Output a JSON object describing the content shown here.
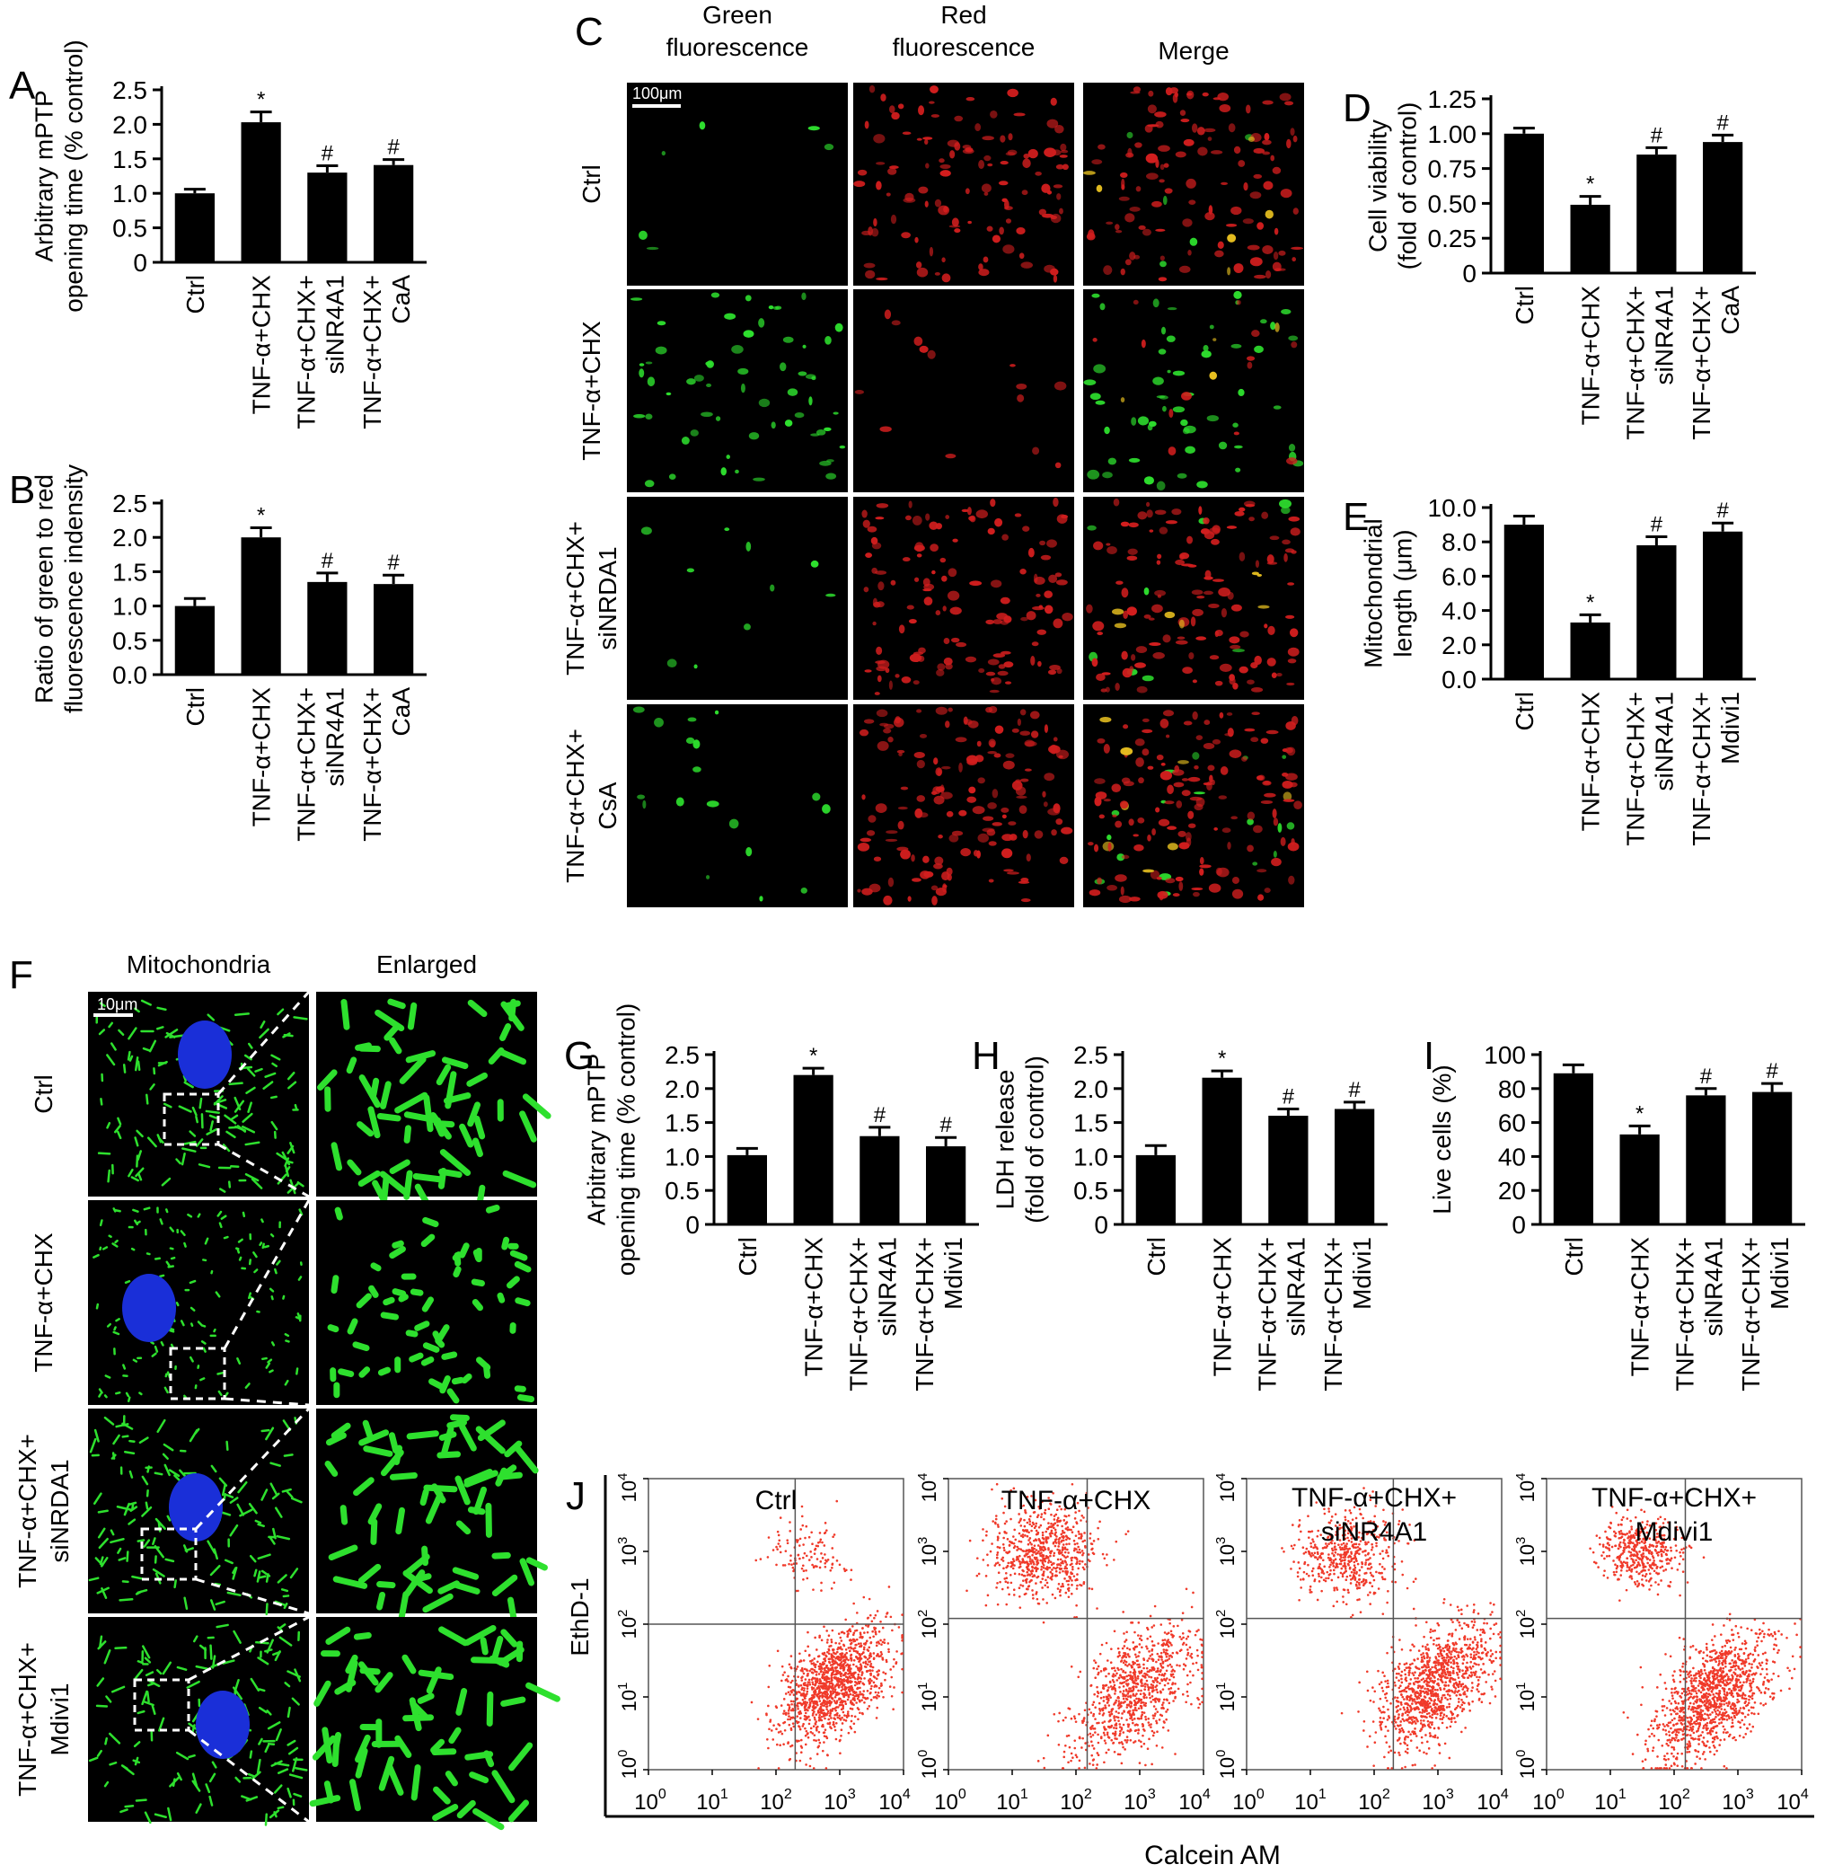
{
  "panel_letters": [
    "A",
    "B",
    "C",
    "D",
    "E",
    "F",
    "G",
    "H",
    "I",
    "J"
  ],
  "colors": {
    "bar": "#000000",
    "green": "#2ee02e",
    "red": "#d21e1e",
    "yellow": "#e8c020",
    "nucleus": "#1a2fd8",
    "flow_dot": "#f03a2a"
  },
  "chart_data": [
    {
      "id": "A",
      "type": "bar",
      "categories": [
        "Ctrl",
        "TNF-α+CHX",
        "TNF-α+CHX+\nsiNR4A1",
        "TNF-α+CHX+\nCaA"
      ],
      "values": [
        1.0,
        2.03,
        1.3,
        1.41
      ],
      "errors": [
        0.06,
        0.15,
        0.1,
        0.08
      ],
      "marks": [
        "",
        "*",
        "#",
        "#"
      ],
      "ylabel": "Arbitrary mPTP\nopening time (% control)",
      "ylim": [
        0,
        2.5
      ],
      "yticks": [
        "0",
        "0.5",
        "1.0",
        "1.5",
        "2.0",
        "2.5"
      ]
    },
    {
      "id": "B",
      "type": "bar",
      "categories": [
        "Ctrl",
        "TNF-α+CHX",
        "TNF-α+CHX+\nsiNR4A1",
        "TNF-α+CHX+\nCaA"
      ],
      "values": [
        1.0,
        2.0,
        1.35,
        1.32
      ],
      "errors": [
        0.11,
        0.14,
        0.13,
        0.13
      ],
      "marks": [
        "",
        "*",
        "#",
        "#"
      ],
      "ylabel": "Ratio of green to red\nfluorescence indensity",
      "ylim": [
        0,
        2.5
      ],
      "yticks": [
        "0.0",
        "0.5",
        "1.0",
        "1.5",
        "2.0",
        "2.5"
      ]
    },
    {
      "id": "D",
      "type": "bar",
      "categories": [
        "Ctrl",
        "TNF-α+CHX",
        "TNF-α+CHX+\nsiNR4A1",
        "TNF-α+CHX+\nCaA"
      ],
      "values": [
        1.0,
        0.49,
        0.85,
        0.94
      ],
      "errors": [
        0.04,
        0.06,
        0.05,
        0.05
      ],
      "marks": [
        "",
        "*",
        "#",
        "#"
      ],
      "ylabel": "Cell viability\n(fold of control)",
      "ylim": [
        0,
        1.25
      ],
      "yticks": [
        "0",
        "0.25",
        "0.50",
        "0.75",
        "1.00",
        "1.25"
      ]
    },
    {
      "id": "E",
      "type": "bar",
      "categories": [
        "Ctrl",
        "TNF-α+CHX",
        "TNF-α+CHX+\nsiNR4A1",
        "TNF-α+CHX+\nMdivi1"
      ],
      "values": [
        9.0,
        3.3,
        7.8,
        8.6
      ],
      "errors": [
        0.5,
        0.45,
        0.5,
        0.5
      ],
      "marks": [
        "",
        "*",
        "#",
        "#"
      ],
      "ylabel": "Mitochondrial\nlength (μm)",
      "ylim": [
        0,
        10
      ],
      "yticks": [
        "0.0",
        "2.0",
        "4.0",
        "6.0",
        "8.0",
        "10.0"
      ]
    },
    {
      "id": "G",
      "type": "bar",
      "categories": [
        "Ctrl",
        "TNF-α+CHX",
        "TNF-α+CHX+\nsiNR4A1",
        "TNF-α+CHX+\nMdivi1"
      ],
      "values": [
        1.02,
        2.2,
        1.3,
        1.15
      ],
      "errors": [
        0.1,
        0.1,
        0.13,
        0.13
      ],
      "marks": [
        "",
        "*",
        "#",
        "#"
      ],
      "ylabel": "Arbitrary mPTP\nopening time (% control)",
      "ylim": [
        0,
        2.5
      ],
      "yticks": [
        "0",
        "0.5",
        "1.0",
        "1.5",
        "2.0",
        "2.5"
      ]
    },
    {
      "id": "H",
      "type": "bar",
      "categories": [
        "Ctrl",
        "TNF-α+CHX",
        "TNF-α+CHX+\nsiNR4A1",
        "TNF-α+CHX+\nMdivi1"
      ],
      "values": [
        1.02,
        2.16,
        1.6,
        1.7
      ],
      "errors": [
        0.14,
        0.1,
        0.1,
        0.1
      ],
      "marks": [
        "",
        "*",
        "#",
        "#"
      ],
      "ylabel": "LDH release\n(fold of control)",
      "ylim": [
        0,
        2.5
      ],
      "yticks": [
        "0",
        "0.5",
        "1.0",
        "1.5",
        "2.0",
        "2.5"
      ]
    },
    {
      "id": "I",
      "type": "bar",
      "categories": [
        "Ctrl",
        "TNF-α+CHX",
        "TNF-α+CHX+\nsiNR4A1",
        "TNF-α+CHX+\nMdivi1"
      ],
      "values": [
        89,
        53,
        76,
        78
      ],
      "errors": [
        5,
        5,
        4,
        5
      ],
      "marks": [
        "",
        "*",
        "#",
        "#"
      ],
      "ylabel": "Live cells (%)",
      "ylim": [
        0,
        100
      ],
      "yticks": [
        "0",
        "20",
        "40",
        "60",
        "80",
        "100"
      ]
    },
    {
      "id": "J",
      "type": "scatter",
      "xlabel": "Calcein AM",
      "ylabel": "EthD-1",
      "xscale": "log",
      "yscale": "log",
      "xlim": [
        1,
        10000
      ],
      "ylim": [
        1,
        10000
      ],
      "tick_exponents": [
        "0",
        "1",
        "2",
        "3",
        "4"
      ],
      "plots": [
        {
          "title": "Ctrl",
          "gate_x": 200,
          "gate_y": 100,
          "clusters": [
            {
              "cx": 800,
              "cy": 15,
              "spread": 0.28,
              "count": 1300
            },
            {
              "cx": 300,
              "cy": 900,
              "spread": 0.2,
              "count": 120
            }
          ]
        },
        {
          "title": "TNF-α+CHX",
          "gate_x": 150,
          "gate_y": 120,
          "clusters": [
            {
              "cx": 30,
              "cy": 900,
              "spread": 0.28,
              "count": 700
            },
            {
              "cx": 800,
              "cy": 12,
              "spread": 0.33,
              "count": 900
            }
          ]
        },
        {
          "title": "TNF-α+CHX+\nsiNR4A1",
          "gate_x": 200,
          "gate_y": 120,
          "clusters": [
            {
              "cx": 40,
              "cy": 900,
              "spread": 0.25,
              "count": 500
            },
            {
              "cx": 900,
              "cy": 15,
              "spread": 0.3,
              "count": 1100
            }
          ]
        },
        {
          "title": "TNF-α+CHX+\nMdivi1",
          "gate_x": 150,
          "gate_y": 120,
          "clusters": [
            {
              "cx": 30,
              "cy": 1000,
              "spread": 0.2,
              "count": 450
            },
            {
              "cx": 400,
              "cy": 10,
              "spread": 0.3,
              "count": 1200
            }
          ]
        }
      ]
    }
  ],
  "panel_c": {
    "column_headers": [
      "Green\nfluorescence",
      "Red\nfluorescence",
      "Merge"
    ],
    "row_labels": [
      "Ctrl",
      "TNF-α+CHX",
      "TNF-α+CHX+\nsiNRDA1",
      "TNF-α+CHX+\nCsA"
    ],
    "scale_bar": "100μm"
  },
  "panel_f": {
    "column_headers": [
      "Mitochondria",
      "Enlarged"
    ],
    "row_labels": [
      "Ctrl",
      "TNF-α+CHX",
      "TNF-α+CHX+\nsiNRDA1",
      "TNF-α+CHX+\nMdivi1"
    ],
    "scale_bar": "10μm"
  }
}
